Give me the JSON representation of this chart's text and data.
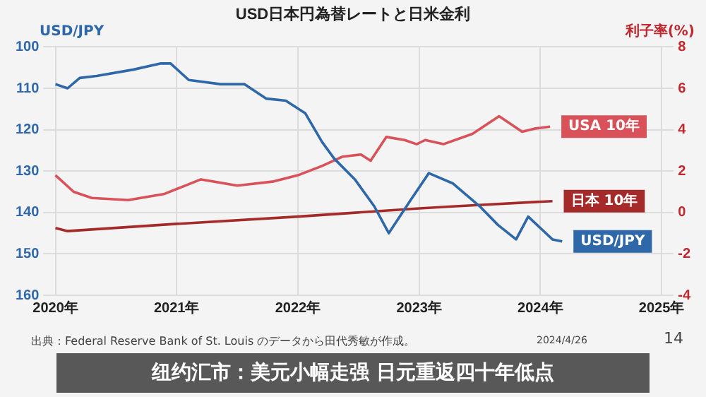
{
  "chart_data": {
    "type": "line",
    "title": "USD日本円為替レートと日米金利",
    "ylabel": "USD/JPY",
    "y2label": "利子率(%)",
    "xlim": [
      2019.9,
      2025.1
    ],
    "xticks": [
      {
        "value": 2020,
        "label": "2020年"
      },
      {
        "value": 2021,
        "label": "2021年"
      },
      {
        "value": 2022,
        "label": "2022年"
      },
      {
        "value": 2023,
        "label": "2023年"
      },
      {
        "value": 2024,
        "label": "2024年"
      },
      {
        "value": 2025,
        "label": "2025年"
      }
    ],
    "ylim": [
      160,
      100
    ],
    "yticks": [
      100,
      110,
      120,
      130,
      140,
      150,
      160
    ],
    "y2lim": [
      -4,
      8
    ],
    "y2ticks": [
      -4,
      -2,
      0,
      2,
      4,
      6,
      8
    ],
    "grid": true,
    "legend": "right",
    "marker": "none",
    "line_style": "solid",
    "series": [
      {
        "name": "USD/JPY",
        "color": "#2e68a8",
        "x": [
          2020.0,
          2020.1,
          2020.2,
          2020.34,
          2020.64,
          2020.87,
          2020.95,
          2021.1,
          2021.36,
          2021.56,
          2021.74,
          2021.9,
          2022.06,
          2022.2,
          2022.3,
          2022.47,
          2022.63,
          2022.75,
          2022.93,
          2023.08,
          2023.28,
          2023.5,
          2023.65,
          2023.8,
          2023.9,
          2024.1,
          2024.18
        ],
        "values": [
          109,
          110,
          107.5,
          107,
          105.5,
          104,
          104,
          108,
          109,
          109,
          112.5,
          113,
          116,
          123,
          127,
          132,
          138.5,
          145,
          137,
          130.5,
          133,
          138.5,
          143,
          146.5,
          141,
          146.5,
          147
        ]
      },
      {
        "name": "USA 10年",
        "color": "#d9525a",
        "axis": "y2",
        "x": [
          2020.0,
          2020.15,
          2020.3,
          2020.6,
          2020.9,
          2021.2,
          2021.5,
          2021.8,
          2022.0,
          2022.2,
          2022.37,
          2022.52,
          2022.6,
          2022.73,
          2022.88,
          2022.98,
          2023.05,
          2023.2,
          2023.44,
          2023.66,
          2023.85,
          2023.95,
          2024.08
        ],
        "values": [
          1.8,
          1.0,
          0.7,
          0.6,
          0.9,
          1.6,
          1.3,
          1.5,
          1.8,
          2.25,
          2.7,
          2.8,
          2.5,
          3.65,
          3.5,
          3.3,
          3.5,
          3.3,
          3.8,
          4.65,
          3.9,
          4.05,
          4.15
        ]
      },
      {
        "name": "日本 10年",
        "color": "#a52a2a",
        "axis": "y2",
        "x": [
          2020.0,
          2020.1,
          2021.0,
          2022.0,
          2023.0,
          2023.3,
          2024.1
        ],
        "values": [
          -0.75,
          -0.9,
          -0.55,
          -0.2,
          0.2,
          0.3,
          0.55
        ]
      }
    ],
    "annotations": [
      "纽约汇市：美元小幅走强 日元重返四十年低点",
      "出典：Federal Reserve Bank of St. Louis のデータから田代秀敏が作成。",
      "2024/4/26",
      "14"
    ]
  }
}
